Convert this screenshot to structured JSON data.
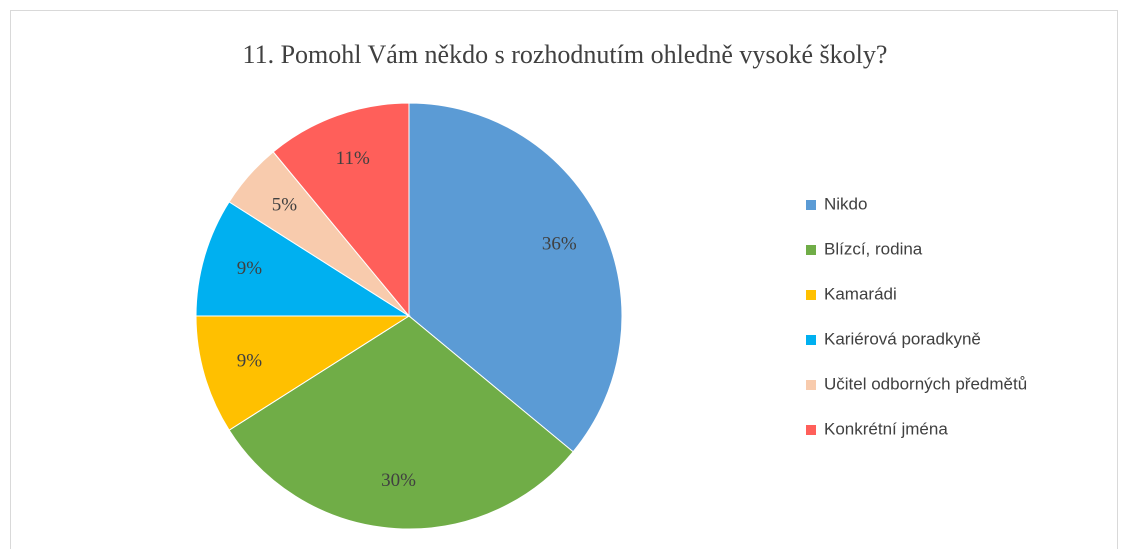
{
  "chart_data": {
    "type": "pie",
    "title": "11. Pomohl Vám někdo s rozhodnutím ohledně vysoké školy?",
    "categories": [
      "Nikdo",
      "Blízcí, rodina",
      "Kamarádi",
      "Kariérová poradkyně",
      "Učitel odborných předmětů",
      "Konkrétní jména"
    ],
    "values": [
      36,
      30,
      9,
      9,
      5,
      11
    ],
    "value_labels": [
      "36%",
      "30%",
      "9%",
      "9%",
      "5%",
      "11%"
    ],
    "colors": [
      "#5b9bd5",
      "#70ad47",
      "#ffc000",
      "#00b0f0",
      "#f8cbad",
      "#ff5f5a"
    ],
    "legend": "right"
  }
}
